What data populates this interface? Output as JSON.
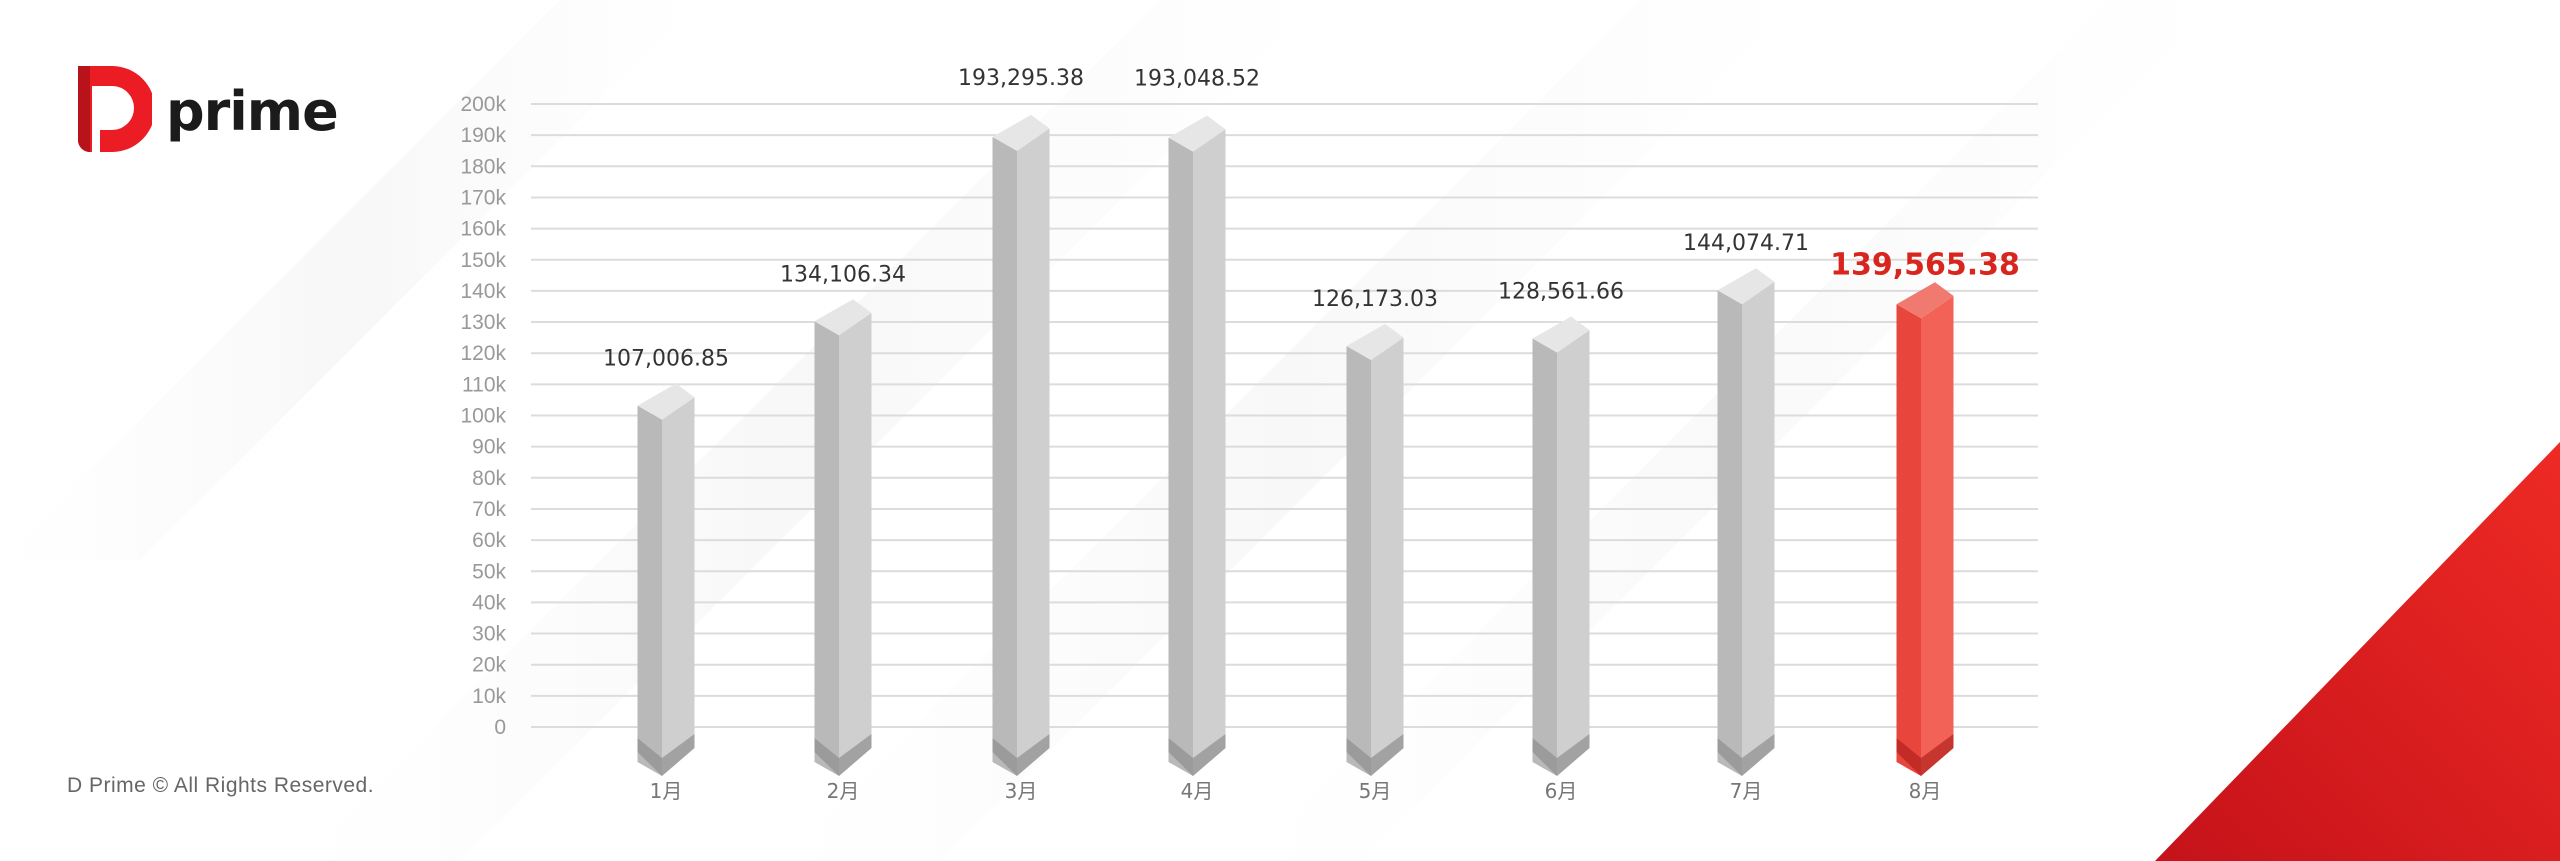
{
  "brand": {
    "name": "prime",
    "logo_letter": "D"
  },
  "footer": {
    "copyright": "D Prime © All Rights Reserved."
  },
  "colors": {
    "accent": "#e8231f",
    "bar": "#b5b5b5",
    "highlight_label": "#d8261e",
    "label": "#333333",
    "tick": "#999999"
  },
  "chart_data": {
    "type": "bar",
    "categories": [
      "1月",
      "2月",
      "3月",
      "4月",
      "5月",
      "6月",
      "7月",
      "8月"
    ],
    "values": [
      107006.85,
      134106.34,
      193295.38,
      193048.52,
      126173.03,
      128561.66,
      144074.71,
      139565.38
    ],
    "value_labels": [
      "107,006.85",
      "134,106.34",
      "193,295.38",
      "193,048.52",
      "126,173.03",
      "128,561.66",
      "144,074.71",
      "139,565.38"
    ],
    "highlight_index": 7,
    "ylim": [
      0,
      200000
    ],
    "yticks": [
      "0",
      "10k",
      "20k",
      "30k",
      "40k",
      "50k",
      "60k",
      "70k",
      "80k",
      "90k",
      "100k",
      "110k",
      "120k",
      "130k",
      "140k",
      "150k",
      "160k",
      "170k",
      "180k",
      "190k",
      "200k"
    ],
    "grid": true,
    "title": "",
    "xlabel": "",
    "ylabel": ""
  }
}
